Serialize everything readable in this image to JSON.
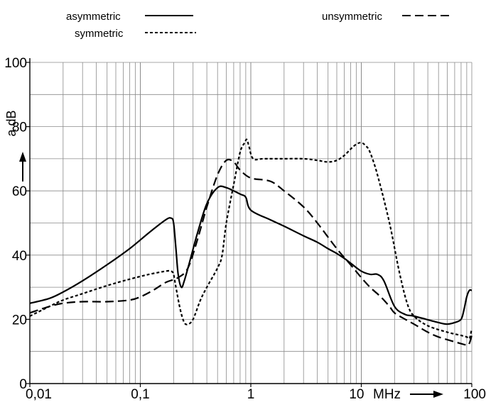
{
  "chart_data": {
    "type": "line",
    "x_scale": "log",
    "xlim": [
      0.01,
      100
    ],
    "ylim": [
      0,
      100
    ],
    "grid": true,
    "legend_position": "top",
    "ylabel": "a dB",
    "x_unit_label": "MHz",
    "x_ticks": [
      {
        "value": 0.01,
        "label": "0,01"
      },
      {
        "value": 0.1,
        "label": "0,1"
      },
      {
        "value": 1,
        "label": "1"
      },
      {
        "value": 10,
        "label": "10"
      },
      {
        "value": 100,
        "label": "100"
      }
    ],
    "y_ticks": [
      {
        "value": 0,
        "label": "0"
      },
      {
        "value": 20,
        "label": "20"
      },
      {
        "value": 40,
        "label": "40"
      },
      {
        "value": 60,
        "label": "60"
      },
      {
        "value": 80,
        "label": "80"
      },
      {
        "value": 100,
        "label": "100"
      }
    ],
    "series": [
      {
        "name": "asymmetric",
        "style": "solid",
        "color": "#000000",
        "points": [
          [
            0.01,
            25
          ],
          [
            0.015,
            26.5
          ],
          [
            0.02,
            28.5
          ],
          [
            0.03,
            32
          ],
          [
            0.05,
            37
          ],
          [
            0.08,
            42
          ],
          [
            0.12,
            47
          ],
          [
            0.17,
            51
          ],
          [
            0.19,
            51.5
          ],
          [
            0.2,
            50
          ],
          [
            0.21,
            42
          ],
          [
            0.22,
            34
          ],
          [
            0.235,
            30
          ],
          [
            0.25,
            32
          ],
          [
            0.28,
            38
          ],
          [
            0.33,
            47
          ],
          [
            0.4,
            56
          ],
          [
            0.5,
            61
          ],
          [
            0.6,
            61
          ],
          [
            0.8,
            59
          ],
          [
            0.9,
            58
          ],
          [
            1.0,
            54
          ],
          [
            1.5,
            51
          ],
          [
            2,
            49
          ],
          [
            3,
            46
          ],
          [
            4,
            44
          ],
          [
            5,
            42
          ],
          [
            6,
            40.5
          ],
          [
            7,
            39
          ],
          [
            8,
            37.5
          ],
          [
            10,
            35
          ],
          [
            12,
            34
          ],
          [
            14,
            34
          ],
          [
            16,
            32
          ],
          [
            20,
            24
          ],
          [
            25,
            21.5
          ],
          [
            30,
            21
          ],
          [
            50,
            19
          ],
          [
            60,
            18.5
          ],
          [
            70,
            19
          ],
          [
            80,
            20
          ],
          [
            85,
            23
          ],
          [
            90,
            27
          ],
          [
            95,
            29
          ],
          [
            100,
            29
          ]
        ]
      },
      {
        "name": "symmetric",
        "style": "dotted",
        "color": "#000000",
        "points": [
          [
            0.01,
            21
          ],
          [
            0.015,
            24
          ],
          [
            0.02,
            26
          ],
          [
            0.03,
            28
          ],
          [
            0.05,
            30.5
          ],
          [
            0.08,
            32.5
          ],
          [
            0.12,
            34
          ],
          [
            0.17,
            35
          ],
          [
            0.19,
            35
          ],
          [
            0.2,
            34
          ],
          [
            0.21,
            30
          ],
          [
            0.23,
            23
          ],
          [
            0.25,
            19
          ],
          [
            0.27,
            18.5
          ],
          [
            0.3,
            20
          ],
          [
            0.35,
            26
          ],
          [
            0.4,
            30
          ],
          [
            0.5,
            36
          ],
          [
            0.55,
            40
          ],
          [
            0.6,
            50
          ],
          [
            0.7,
            62
          ],
          [
            0.8,
            72
          ],
          [
            0.88,
            75
          ],
          [
            0.92,
            76
          ],
          [
            0.96,
            74
          ],
          [
            1.05,
            70
          ],
          [
            1.3,
            70
          ],
          [
            2,
            70
          ],
          [
            3,
            70
          ],
          [
            4,
            69.5
          ],
          [
            5,
            69
          ],
          [
            6,
            69.5
          ],
          [
            7,
            71
          ],
          [
            8,
            73
          ],
          [
            9,
            74.5
          ],
          [
            10,
            75
          ],
          [
            11,
            74
          ],
          [
            12,
            72
          ],
          [
            14,
            65
          ],
          [
            18,
            50
          ],
          [
            22,
            35
          ],
          [
            26,
            25
          ],
          [
            30,
            21
          ],
          [
            40,
            18
          ],
          [
            60,
            16
          ],
          [
            80,
            15
          ],
          [
            90,
            14.5
          ],
          [
            95,
            14
          ],
          [
            97,
            15
          ],
          [
            100,
            17
          ]
        ]
      },
      {
        "name": "unsymmetric",
        "style": "dashed",
        "color": "#000000",
        "points": [
          [
            0.01,
            22
          ],
          [
            0.015,
            24
          ],
          [
            0.02,
            25
          ],
          [
            0.03,
            25.5
          ],
          [
            0.05,
            25.5
          ],
          [
            0.08,
            26
          ],
          [
            0.1,
            27
          ],
          [
            0.13,
            29
          ],
          [
            0.17,
            31.5
          ],
          [
            0.22,
            33
          ],
          [
            0.27,
            36
          ],
          [
            0.33,
            45
          ],
          [
            0.4,
            55
          ],
          [
            0.5,
            65
          ],
          [
            0.6,
            69.5
          ],
          [
            0.7,
            69
          ],
          [
            0.8,
            66.5
          ],
          [
            1,
            64
          ],
          [
            1.5,
            63
          ],
          [
            2,
            60
          ],
          [
            3,
            55
          ],
          [
            4,
            50
          ],
          [
            6,
            42
          ],
          [
            8,
            37
          ],
          [
            10,
            33
          ],
          [
            12,
            30
          ],
          [
            15,
            27
          ],
          [
            18,
            24
          ],
          [
            20,
            22
          ],
          [
            25,
            20
          ],
          [
            30,
            18.5
          ],
          [
            40,
            16
          ],
          [
            50,
            14.5
          ],
          [
            70,
            13
          ],
          [
            90,
            12
          ],
          [
            95,
            12.5
          ],
          [
            100,
            15
          ]
        ]
      }
    ]
  }
}
